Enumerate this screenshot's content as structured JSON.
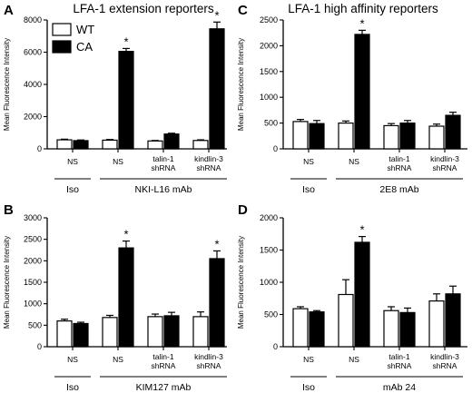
{
  "titles": {
    "left": "LFA-1 extension reporters",
    "right": "LFA-1 high affinity reporters"
  },
  "legend": {
    "wt_label": "WT",
    "ca_label": "CA"
  },
  "chart_data": [
    {
      "type": "bar",
      "panel": "A",
      "ylabel": "Mean Fluorescence Intensity",
      "ylim": [
        0,
        8000
      ],
      "yticks": [
        0,
        2000,
        4000,
        6000,
        8000
      ],
      "categories": [
        "NS",
        "NS",
        "talin-1 shRNA",
        "kindlin-3 shRNA"
      ],
      "series": [
        {
          "name": "WT",
          "values": [
            560,
            540,
            490,
            520
          ],
          "errors": [
            40,
            40,
            30,
            40
          ]
        },
        {
          "name": "CA",
          "values": [
            510,
            6050,
            920,
            7450
          ],
          "errors": [
            40,
            180,
            50,
            420
          ]
        }
      ],
      "significant": [
        false,
        true,
        false,
        true
      ],
      "groups": [
        {
          "label": "Iso",
          "span": [
            0,
            0
          ]
        },
        {
          "label": "NKI-L16 mAb",
          "span": [
            1,
            3
          ]
        }
      ]
    },
    {
      "type": "bar",
      "panel": "C",
      "ylabel": "Mean Fluorescence Intensity",
      "ylim": [
        0,
        2500
      ],
      "yticks": [
        0,
        500,
        1000,
        1500,
        2000,
        2500
      ],
      "categories": [
        "NS",
        "NS",
        "talin-1 shRNA",
        "kindlin-3 shRNA"
      ],
      "series": [
        {
          "name": "WT",
          "values": [
            530,
            500,
            450,
            440
          ],
          "errors": [
            40,
            40,
            40,
            40
          ]
        },
        {
          "name": "CA",
          "values": [
            490,
            2220,
            500,
            650
          ],
          "errors": [
            60,
            80,
            50,
            60
          ]
        }
      ],
      "significant": [
        false,
        true,
        false,
        false
      ],
      "groups": [
        {
          "label": "Iso",
          "span": [
            0,
            0
          ]
        },
        {
          "label": "2E8 mAb",
          "span": [
            1,
            3
          ]
        }
      ]
    },
    {
      "type": "bar",
      "panel": "B",
      "ylabel": "Mean Fluorescence Intensity",
      "ylim": [
        0,
        3000
      ],
      "yticks": [
        0,
        500,
        1000,
        1500,
        2000,
        2500,
        3000
      ],
      "categories": [
        "NS",
        "NS",
        "talin-1 shRNA",
        "kindlin-3 shRNA"
      ],
      "series": [
        {
          "name": "WT",
          "values": [
            600,
            680,
            700,
            700
          ],
          "errors": [
            40,
            50,
            60,
            110
          ]
        },
        {
          "name": "CA",
          "values": [
            540,
            2300,
            720,
            2050
          ],
          "errors": [
            30,
            160,
            80,
            180
          ]
        }
      ],
      "significant": [
        false,
        true,
        false,
        true
      ],
      "groups": [
        {
          "label": "Iso",
          "span": [
            0,
            0
          ]
        },
        {
          "label": "KIM127 mAb",
          "span": [
            1,
            3
          ]
        }
      ]
    },
    {
      "type": "bar",
      "panel": "D",
      "ylabel": "Mean Fluorescence Intensity",
      "ylim": [
        0,
        2000
      ],
      "yticks": [
        0,
        500,
        1000,
        1500,
        2000
      ],
      "categories": [
        "NS",
        "NS",
        "talin-1 shRNA",
        "kindlin-3 shRNA"
      ],
      "series": [
        {
          "name": "WT",
          "values": [
            590,
            810,
            560,
            710
          ],
          "errors": [
            30,
            230,
            60,
            110
          ]
        },
        {
          "name": "CA",
          "values": [
            540,
            1620,
            530,
            820
          ],
          "errors": [
            20,
            90,
            70,
            120
          ]
        }
      ],
      "significant": [
        false,
        true,
        false,
        false
      ],
      "groups": [
        {
          "label": "Iso",
          "span": [
            0,
            0
          ]
        },
        {
          "label": "mAb 24",
          "span": [
            1,
            3
          ]
        }
      ]
    }
  ]
}
